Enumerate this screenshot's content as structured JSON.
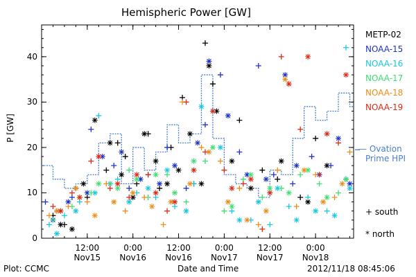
{
  "chart_data": {
    "type": "scatter",
    "title": "Hemispheric Power [GW]",
    "ylabel": "P [GW]",
    "xlabel": "Date and Time",
    "ylim": [
      0,
      47
    ],
    "yticks": [
      0,
      10,
      20,
      30,
      40
    ],
    "xlim_hours": [
      0,
      82
    ],
    "xticks": [
      {
        "hour": 12,
        "time": "12:00",
        "date": "Nov15"
      },
      {
        "hour": 24,
        "time": "0:00",
        "date": "Nov16"
      },
      {
        "hour": 36,
        "time": "12:00",
        "date": "Nov16"
      },
      {
        "hour": 48,
        "time": "0:00",
        "date": "Nov17"
      },
      {
        "hour": 60,
        "time": "12:00",
        "date": "Nov17"
      },
      {
        "hour": 72,
        "time": "0:00",
        "date": "Nov18"
      }
    ],
    "legend": [
      {
        "name": "METP-02",
        "color": "#000000"
      },
      {
        "name": "NOAA-15",
        "color": "#1f32c8"
      },
      {
        "name": "NOAA-16",
        "color": "#18c8e0"
      },
      {
        "name": "NOAA-17",
        "color": "#3ce070"
      },
      {
        "name": "NOAA-18",
        "color": "#f08c18"
      },
      {
        "name": "NOAA-19",
        "color": "#e02814"
      }
    ],
    "ovation": {
      "label_line1": "— Ovation",
      "label_line2": "Prime HPI",
      "color": "#4a7fd0",
      "step_x": [
        0,
        3,
        6,
        9,
        12,
        15,
        18,
        21,
        24,
        27,
        30,
        33,
        36,
        39,
        42,
        45,
        48,
        51,
        54,
        57,
        60,
        63,
        66,
        69,
        72,
        75,
        78,
        81
      ],
      "step_y": [
        16,
        13,
        11,
        12,
        14,
        21,
        23,
        12,
        20,
        15,
        19,
        25,
        21,
        23,
        36,
        22,
        14,
        12,
        11,
        9,
        15,
        14,
        22,
        29,
        26,
        28,
        32,
        29
      ]
    },
    "symbol_key": {
      "south": "+ south",
      "north": "* north"
    },
    "series": [
      {
        "name": "METP-02",
        "color": "#000000",
        "south_x": [
          3,
          6,
          9,
          12,
          17,
          20,
          22,
          25,
          28,
          31,
          34,
          37,
          40,
          43,
          45,
          52,
          58,
          62,
          68,
          72
        ],
        "south_y": [
          5,
          3,
          11,
          9,
          15,
          21,
          18,
          12,
          23,
          11,
          20,
          31,
          12,
          43,
          34,
          26,
          15,
          13,
          9,
          22
        ],
        "north_x": [
          5,
          8,
          11,
          14,
          18,
          21,
          24,
          27,
          30,
          33,
          36,
          39,
          42,
          44,
          46,
          50,
          55,
          63,
          70,
          75
        ],
        "north_y": [
          3,
          2,
          12,
          26,
          21,
          14,
          9,
          23,
          17,
          12,
          15,
          23,
          12,
          38,
          28,
          17,
          11,
          17,
          8,
          16
        ]
      },
      {
        "name": "NOAA-15",
        "color": "#1f32c8",
        "south_x": [
          1,
          4,
          8,
          13,
          19,
          23,
          28,
          33,
          38,
          43,
          47,
          52,
          57,
          61,
          66,
          71,
          76,
          80
        ],
        "south_y": [
          8,
          6,
          9,
          24,
          16,
          11,
          14,
          20,
          11,
          25,
          36,
          19,
          38,
          14,
          12,
          18,
          16,
          13
        ],
        "north_x": [
          3,
          7,
          12,
          16,
          21,
          26,
          31,
          35,
          41,
          44,
          49,
          54,
          59,
          64,
          67,
          73,
          78,
          81
        ],
        "north_y": [
          4,
          8,
          10,
          18,
          19,
          13,
          12,
          16,
          21,
          39,
          27,
          14,
          13,
          36,
          16,
          14,
          22,
          12
        ]
      },
      {
        "name": "NOAA-16",
        "color": "#18c8e0",
        "south_x": [
          2,
          6,
          10,
          15,
          20,
          25,
          30,
          35,
          40,
          45,
          50,
          55,
          60,
          65,
          70,
          75,
          80
        ],
        "south_y": [
          3,
          5,
          8,
          27,
          13,
          10,
          9,
          7,
          12,
          28,
          6,
          4,
          3,
          7,
          9,
          6,
          42
        ],
        "north_x": [
          4,
          9,
          14,
          18,
          23,
          28,
          33,
          38,
          42,
          47,
          52,
          57,
          62,
          67,
          72,
          77,
          81
        ],
        "north_y": [
          1,
          6,
          10,
          12,
          8,
          11,
          15,
          6,
          29,
          20,
          4,
          8,
          11,
          4,
          6,
          5,
          11
        ]
      },
      {
        "name": "NOAA-17",
        "color": "#3ce070",
        "south_x": [
          3,
          8,
          13,
          18,
          23,
          28,
          33,
          38,
          43,
          48,
          53,
          58,
          63,
          68,
          73,
          78
        ],
        "south_y": [
          4,
          7,
          10,
          12,
          15,
          9,
          14,
          8,
          17,
          6,
          13,
          9,
          11,
          14,
          12,
          10
        ],
        "north_x": [
          5,
          10,
          15,
          20,
          25,
          30,
          35,
          40,
          45,
          50,
          55,
          60,
          65,
          70,
          75,
          80
        ],
        "north_y": [
          6,
          9,
          12,
          11,
          13,
          14,
          10,
          17,
          20,
          7,
          14,
          11,
          10,
          15,
          9,
          13
        ]
      },
      {
        "name": "NOAA-18",
        "color": "#f08c18",
        "south_x": [
          2,
          7,
          12,
          17,
          22,
          27,
          32,
          37,
          42,
          47,
          52,
          57,
          62,
          67,
          72,
          77,
          81
        ],
        "south_y": [
          5,
          7,
          8,
          12,
          6,
          9,
          3,
          30,
          20,
          17,
          11,
          3,
          15,
          7,
          14,
          9,
          19
        ],
        "north_x": [
          4,
          9,
          14,
          19,
          24,
          29,
          34,
          39,
          44,
          49,
          54,
          59,
          64,
          69,
          74,
          79
        ],
        "north_y": [
          6,
          11,
          5,
          8,
          10,
          7,
          8,
          12,
          19,
          8,
          4,
          6,
          35,
          15,
          8,
          12
        ]
      },
      {
        "name": "NOAA-19",
        "color": "#e02814",
        "south_x": [
          3,
          8,
          13,
          18,
          23,
          28,
          33,
          38,
          43,
          48,
          53,
          58,
          63,
          68,
          73,
          78
        ],
        "south_y": [
          7,
          10,
          17,
          11,
          9,
          14,
          6,
          30,
          19,
          15,
          12,
          2,
          40,
          24,
          14,
          21
        ],
        "north_x": [
          5,
          10,
          15,
          20,
          25,
          30,
          35,
          40,
          45,
          50,
          55,
          60,
          65,
          70,
          75,
          80
        ],
        "north_y": [
          6,
          9,
          18,
          12,
          14,
          10,
          8,
          15,
          28,
          11,
          13,
          10,
          34,
          40,
          23,
          36
        ]
      }
    ]
  },
  "footer": {
    "left": "Plot: CCMC",
    "right": "2012/11/18 08:45:06"
  }
}
